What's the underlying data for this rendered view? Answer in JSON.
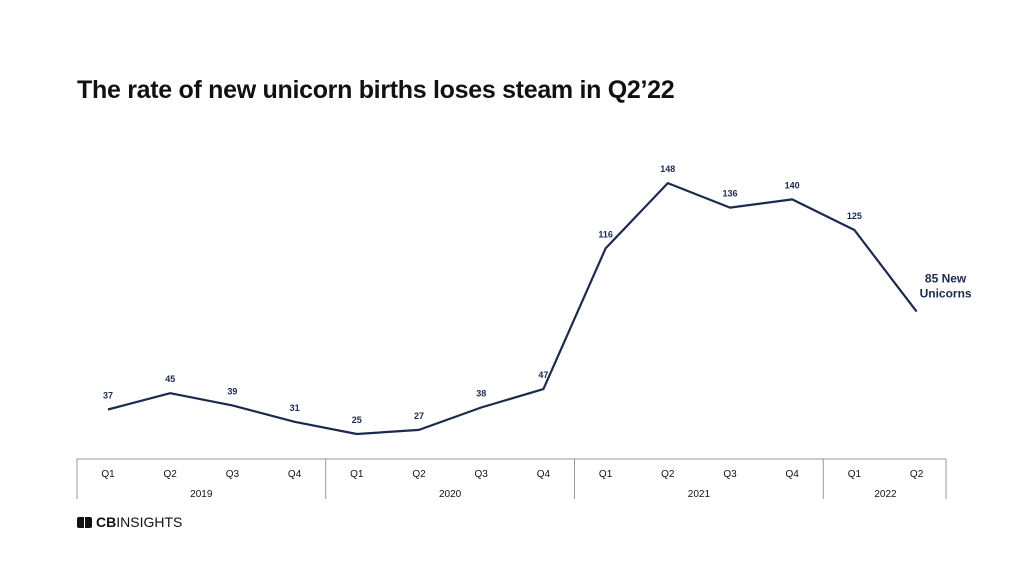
{
  "title": "The rate of new unicorn births loses steam in Q2’22",
  "brand": {
    "bold": "CB",
    "rest": "INSIGHTS"
  },
  "chart_data": {
    "type": "line",
    "title": "The rate of new unicorn births loses steam in Q2’22",
    "categories": [
      "Q1",
      "Q2",
      "Q3",
      "Q4",
      "Q1",
      "Q2",
      "Q3",
      "Q4",
      "Q1",
      "Q2",
      "Q3",
      "Q4",
      "Q1",
      "Q2"
    ],
    "groups": [
      {
        "label": "2019",
        "count": 4
      },
      {
        "label": "2020",
        "count": 4
      },
      {
        "label": "2021",
        "count": 4
      },
      {
        "label": "2022",
        "count": 2
      }
    ],
    "values": [
      37,
      45,
      39,
      31,
      25,
      27,
      38,
      47,
      116,
      148,
      136,
      140,
      125,
      85
    ],
    "data_labels": [
      "37",
      "45",
      "39",
      "31",
      "25",
      "27",
      "38",
      "47",
      "116",
      "148",
      "136",
      "140",
      "125",
      ""
    ],
    "last_label": [
      "85 New",
      "Unicorns"
    ],
    "ylim": [
      0,
      160
    ],
    "xlabel": "",
    "ylabel": "",
    "grid": false,
    "line_color": "#1c2a4f"
  }
}
